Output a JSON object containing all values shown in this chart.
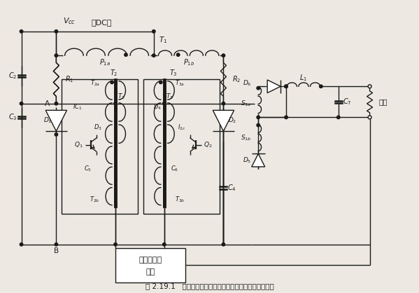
{
  "title": "图 2.19.1   占空比控制的推挽变换器和对应的基极驱动电路",
  "bg_color": "#ede9e2",
  "line_color": "#1a1a1a",
  "fig_width": 5.99,
  "fig_height": 4.18,
  "dpi": 100,
  "xlim": [
    0,
    120
  ],
  "ylim": [
    0,
    85
  ]
}
